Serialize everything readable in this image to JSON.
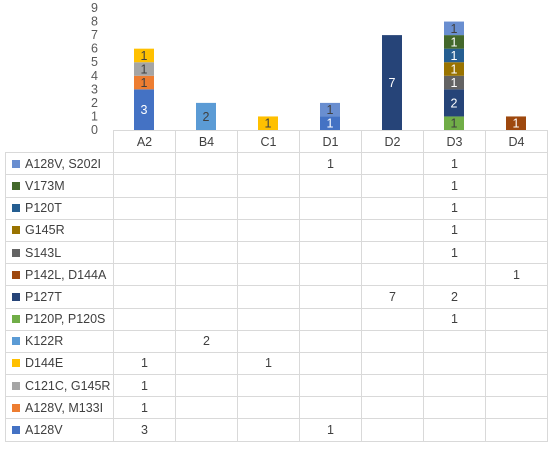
{
  "chart_data": {
    "type": "bar",
    "stacked": true,
    "categories": [
      "A2",
      "B4",
      "C1",
      "D1",
      "D2",
      "D3",
      "D4"
    ],
    "ylim": [
      0,
      9
    ],
    "yticks": [
      "0",
      "1",
      "2",
      "3",
      "4",
      "5",
      "6",
      "7",
      "8",
      "9"
    ],
    "gridlines": false,
    "legend": "table-left",
    "series": [
      {
        "name": "A128V",
        "color": "#4472c4",
        "values": [
          3,
          null,
          null,
          1,
          null,
          null,
          null
        ]
      },
      {
        "name": "A128V, M133I",
        "color": "#ed7d31",
        "values": [
          1,
          null,
          null,
          null,
          null,
          null,
          null
        ]
      },
      {
        "name": "C121C, G145R",
        "color": "#a5a5a5",
        "values": [
          1,
          null,
          null,
          null,
          null,
          null,
          null
        ]
      },
      {
        "name": "D144E",
        "color": "#ffc000",
        "values": [
          1,
          null,
          1,
          null,
          null,
          null,
          null
        ]
      },
      {
        "name": "K122R",
        "color": "#5b9bd5",
        "values": [
          null,
          2,
          null,
          null,
          null,
          null,
          null
        ]
      },
      {
        "name": "P120P, P120S",
        "color": "#70ad47",
        "values": [
          null,
          null,
          null,
          null,
          null,
          1,
          null
        ]
      },
      {
        "name": "P127T",
        "color": "#264478",
        "values": [
          null,
          null,
          null,
          null,
          7,
          2,
          null
        ]
      },
      {
        "name": "P142L, D144A",
        "color": "#9e480e",
        "values": [
          null,
          null,
          null,
          null,
          null,
          null,
          1
        ]
      },
      {
        "name": "S143L",
        "color": "#636363",
        "values": [
          null,
          null,
          null,
          null,
          null,
          1,
          null
        ]
      },
      {
        "name": "G145R",
        "color": "#997300",
        "values": [
          null,
          null,
          null,
          null,
          null,
          1,
          null
        ]
      },
      {
        "name": "P120T",
        "color": "#255e91",
        "values": [
          null,
          null,
          null,
          null,
          null,
          1,
          null
        ]
      },
      {
        "name": "V173M",
        "color": "#43682b",
        "values": [
          null,
          null,
          null,
          null,
          null,
          1,
          null
        ]
      },
      {
        "name": "A128V, S202I",
        "color": "#698ed0",
        "values": [
          null,
          null,
          null,
          1,
          null,
          1,
          null
        ]
      }
    ]
  }
}
